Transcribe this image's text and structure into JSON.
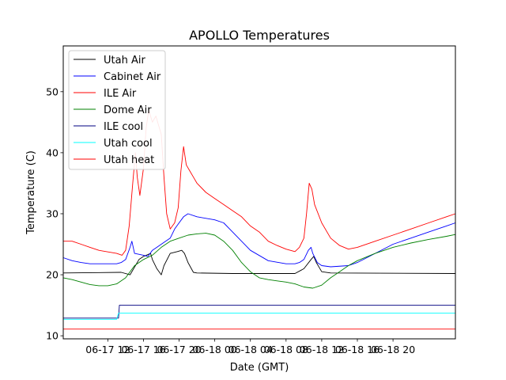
{
  "chart_data": {
    "type": "line",
    "title": "APOLLO Temperatures",
    "xlabel": "Date (GMT)",
    "ylabel": "Temperature (C)",
    "xlim": [
      1,
      45
    ],
    "ylim": [
      9.5,
      57.5
    ],
    "x_units": "hours since 06-17 00 GMT",
    "xticks": [
      {
        "x": 6,
        "label": "06-17 12"
      },
      {
        "x": 10,
        "label": "06-17 16"
      },
      {
        "x": 14,
        "label": "06-17 20"
      },
      {
        "x": 18,
        "label": "06-18 00"
      },
      {
        "x": 22,
        "label": "06-18 04"
      },
      {
        "x": 26,
        "label": "06-18 08"
      },
      {
        "x": 30,
        "label": "06-18 12"
      },
      {
        "x": 34,
        "label": "06-18 16"
      },
      {
        "x": 38,
        "label": "06-18 20"
      }
    ],
    "yticks": [
      10,
      20,
      30,
      40,
      50
    ],
    "legend_position": "upper-left",
    "series": [
      {
        "name": "Utah Air",
        "color": "#000000",
        "points": [
          [
            1,
            20.3
          ],
          [
            7.5,
            20.4
          ],
          [
            8.5,
            20.0
          ],
          [
            9.5,
            22.5
          ],
          [
            10,
            23.0
          ],
          [
            10.8,
            23.5
          ],
          [
            11,
            22.5
          ],
          [
            11.5,
            21.0
          ],
          [
            12,
            20.0
          ],
          [
            12.3,
            21.5
          ],
          [
            13,
            23.5
          ],
          [
            13.8,
            23.8
          ],
          [
            14.3,
            24.0
          ],
          [
            14.6,
            23.5
          ],
          [
            15,
            22.0
          ],
          [
            15.6,
            20.4
          ],
          [
            16,
            20.3
          ],
          [
            20,
            20.2
          ],
          [
            27,
            20.2
          ],
          [
            28,
            21.0
          ],
          [
            28.8,
            22.5
          ],
          [
            29.1,
            23.0
          ],
          [
            29.4,
            22.0
          ],
          [
            30,
            20.5
          ],
          [
            31,
            20.3
          ],
          [
            45,
            20.2
          ]
        ]
      },
      {
        "name": "Cabinet Air",
        "color": "#0000ff",
        "points": [
          [
            1,
            22.8
          ],
          [
            2,
            22.3
          ],
          [
            3,
            22.0
          ],
          [
            4,
            21.8
          ],
          [
            7,
            21.8
          ],
          [
            7.5,
            22.0
          ],
          [
            8,
            22.5
          ],
          [
            8.5,
            24.5
          ],
          [
            8.7,
            25.5
          ],
          [
            9,
            23.5
          ],
          [
            10,
            23.2
          ],
          [
            10.5,
            23.0
          ],
          [
            11,
            24.0
          ],
          [
            11.5,
            24.5
          ],
          [
            12,
            25.0
          ],
          [
            13,
            26.0
          ],
          [
            13.5,
            27.5
          ],
          [
            14,
            28.5
          ],
          [
            14.5,
            29.5
          ],
          [
            15,
            30.0
          ],
          [
            16,
            29.5
          ],
          [
            18,
            29.0
          ],
          [
            19,
            28.5
          ],
          [
            20,
            27.0
          ],
          [
            22,
            24.0
          ],
          [
            24,
            22.3
          ],
          [
            26,
            21.8
          ],
          [
            27,
            21.8
          ],
          [
            27.5,
            22.0
          ],
          [
            28,
            22.5
          ],
          [
            28.5,
            24.0
          ],
          [
            28.8,
            24.5
          ],
          [
            29,
            23.5
          ],
          [
            29.5,
            22.0
          ],
          [
            30,
            21.5
          ],
          [
            31,
            21.3
          ],
          [
            33,
            21.5
          ],
          [
            34,
            22.0
          ],
          [
            36,
            23.5
          ],
          [
            38,
            25.0
          ],
          [
            40,
            26.0
          ],
          [
            42,
            27.0
          ],
          [
            44,
            28.0
          ],
          [
            45,
            28.5
          ]
        ]
      },
      {
        "name": "ILE Air",
        "color": "#ff0000",
        "points": [
          [
            1,
            25.5
          ],
          [
            2,
            25.5
          ],
          [
            3,
            25.0
          ],
          [
            4,
            24.5
          ],
          [
            5,
            24.0
          ],
          [
            7,
            23.5
          ],
          [
            7.6,
            23.2
          ],
          [
            8,
            24.0
          ],
          [
            8.4,
            28.0
          ],
          [
            8.8,
            35.0
          ],
          [
            9.1,
            40.0
          ],
          [
            9.3,
            36.0
          ],
          [
            9.6,
            33.0
          ],
          [
            10,
            37.5
          ],
          [
            10.3,
            44.0
          ],
          [
            10.6,
            47.0
          ],
          [
            11,
            45.0
          ],
          [
            11.4,
            46.0
          ],
          [
            11.8,
            44.0
          ],
          [
            12,
            43.0
          ],
          [
            12.3,
            36.0
          ],
          [
            12.6,
            30.0
          ],
          [
            13,
            27.5
          ],
          [
            13.5,
            28.5
          ],
          [
            13.9,
            31.0
          ],
          [
            14.2,
            37.0
          ],
          [
            14.5,
            41.0
          ],
          [
            14.8,
            38.0
          ],
          [
            15.2,
            37.0
          ],
          [
            15.6,
            36.0
          ],
          [
            16,
            35.0
          ],
          [
            17,
            33.5
          ],
          [
            18,
            32.5
          ],
          [
            19,
            31.5
          ],
          [
            20,
            30.5
          ],
          [
            21,
            29.5
          ],
          [
            22,
            28.0
          ],
          [
            23,
            27.0
          ],
          [
            24,
            25.5
          ],
          [
            25,
            24.8
          ],
          [
            26,
            24.2
          ],
          [
            27,
            23.8
          ],
          [
            27.5,
            24.5
          ],
          [
            28,
            26.0
          ],
          [
            28.3,
            30.0
          ],
          [
            28.6,
            35.0
          ],
          [
            28.9,
            34.0
          ],
          [
            29.2,
            31.5
          ],
          [
            30,
            28.5
          ],
          [
            31,
            26.0
          ],
          [
            32,
            24.8
          ],
          [
            33,
            24.2
          ],
          [
            34,
            24.5
          ],
          [
            36,
            25.5
          ],
          [
            38,
            26.5
          ],
          [
            40,
            27.5
          ],
          [
            42,
            28.5
          ],
          [
            44,
            29.5
          ],
          [
            45,
            30.0
          ]
        ]
      },
      {
        "name": "Dome Air",
        "color": "#008000",
        "points": [
          [
            1,
            19.5
          ],
          [
            2,
            19.2
          ],
          [
            3,
            18.8
          ],
          [
            4,
            18.4
          ],
          [
            5,
            18.2
          ],
          [
            6,
            18.2
          ],
          [
            7,
            18.5
          ],
          [
            8,
            19.5
          ],
          [
            9,
            21.5
          ],
          [
            10,
            22.5
          ],
          [
            11,
            23.2
          ],
          [
            12,
            24.5
          ],
          [
            13,
            25.5
          ],
          [
            14,
            26.0
          ],
          [
            15,
            26.5
          ],
          [
            16,
            26.7
          ],
          [
            17,
            26.8
          ],
          [
            18,
            26.5
          ],
          [
            19,
            25.5
          ],
          [
            20,
            24.0
          ],
          [
            21,
            22.0
          ],
          [
            22,
            20.5
          ],
          [
            23,
            19.5
          ],
          [
            24,
            19.2
          ],
          [
            25,
            19.0
          ],
          [
            26,
            18.8
          ],
          [
            27,
            18.5
          ],
          [
            28,
            18.0
          ],
          [
            29,
            17.8
          ],
          [
            30,
            18.3
          ],
          [
            31,
            19.5
          ],
          [
            32,
            20.5
          ],
          [
            33,
            21.5
          ],
          [
            34,
            22.3
          ],
          [
            36,
            23.5
          ],
          [
            38,
            24.5
          ],
          [
            40,
            25.2
          ],
          [
            42,
            25.8
          ],
          [
            44,
            26.3
          ],
          [
            45,
            26.6
          ]
        ]
      },
      {
        "name": "ILE cool",
        "color": "#000080",
        "points": [
          [
            1,
            12.9
          ],
          [
            7.2,
            12.9
          ],
          [
            7.3,
            15.0
          ],
          [
            45,
            15.0
          ]
        ]
      },
      {
        "name": "Utah cool",
        "color": "#00ffff",
        "points": [
          [
            1,
            12.7
          ],
          [
            7,
            12.7
          ],
          [
            7.2,
            13.7
          ],
          [
            45,
            13.7
          ]
        ]
      },
      {
        "name": "Utah heat",
        "color": "#ff0000",
        "points": [
          [
            1,
            11.1
          ],
          [
            45,
            11.1
          ]
        ]
      }
    ]
  }
}
